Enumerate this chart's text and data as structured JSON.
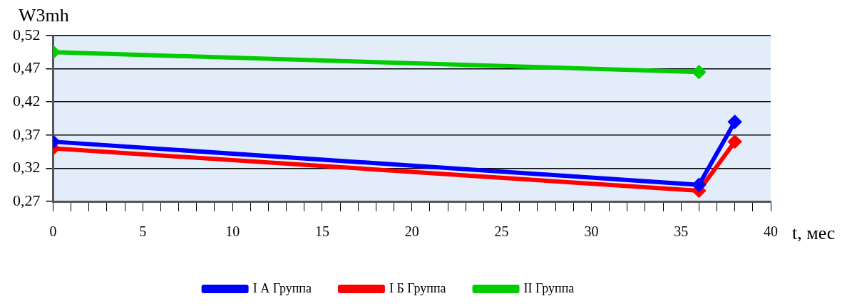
{
  "chart_data": {
    "type": "line",
    "ylabel": "W3mh",
    "xlabel": "t, мес",
    "x": [
      0,
      36,
      38
    ],
    "series": [
      {
        "name": "I А Группа",
        "color": "#0000ff",
        "values": [
          0.36,
          0.295,
          0.39
        ]
      },
      {
        "name": "I Б Группа",
        "color": "#ff0000",
        "values": [
          0.35,
          0.286,
          0.36
        ]
      },
      {
        "name": "II Группа",
        "color": "#00cc00",
        "x": [
          0,
          36
        ],
        "values": [
          0.495,
          0.465
        ]
      }
    ],
    "xlim": [
      0,
      40
    ],
    "xticks": [
      0,
      {
        "value": 1,
        "label": null
      },
      {
        "value": 2,
        "label": null
      },
      {
        "value": 3,
        "label": null
      },
      {
        "value": 4,
        "label": null
      },
      5,
      {
        "value": 6,
        "label": null
      },
      {
        "value": 7,
        "label": null
      },
      {
        "value": 8,
        "label": null
      },
      {
        "value": 9,
        "label": null
      },
      10,
      {
        "value": 11,
        "label": null
      },
      {
        "value": 12,
        "label": null
      },
      {
        "value": 13,
        "label": null
      },
      {
        "value": 14,
        "label": null
      },
      15,
      {
        "value": 16,
        "label": null
      },
      {
        "value": 17,
        "label": null
      },
      {
        "value": 18,
        "label": null
      },
      {
        "value": 19,
        "label": null
      },
      20,
      {
        "value": 21,
        "label": null
      },
      {
        "value": 22,
        "label": null
      },
      {
        "value": 23,
        "label": null
      },
      {
        "value": 24,
        "label": null
      },
      25,
      {
        "value": 26,
        "label": null
      },
      {
        "value": 27,
        "label": null
      },
      {
        "value": 28,
        "label": null
      },
      {
        "value": 29,
        "label": null
      },
      30,
      {
        "value": 31,
        "label": null
      },
      {
        "value": 32,
        "label": null
      },
      {
        "value": 33,
        "label": null
      },
      {
        "value": 34,
        "label": null
      },
      35,
      {
        "value": 36,
        "label": null
      },
      {
        "value": 37,
        "label": null
      },
      {
        "value": 38,
        "label": null
      },
      {
        "value": 39,
        "label": null
      },
      40
    ],
    "ylim": [
      0.27,
      0.52
    ],
    "yticks": [
      {
        "value": 0.27,
        "label": "0,27"
      },
      {
        "value": 0.32,
        "label": "0,32"
      },
      {
        "value": 0.37,
        "label": "0,37"
      },
      {
        "value": 0.42,
        "label": "0,42"
      },
      {
        "value": 0.47,
        "label": "0,47"
      },
      {
        "value": 0.52,
        "label": "0,52"
      }
    ],
    "grid": "y",
    "legend": "bottom",
    "marker": "diamond",
    "line_style": "solid"
  }
}
